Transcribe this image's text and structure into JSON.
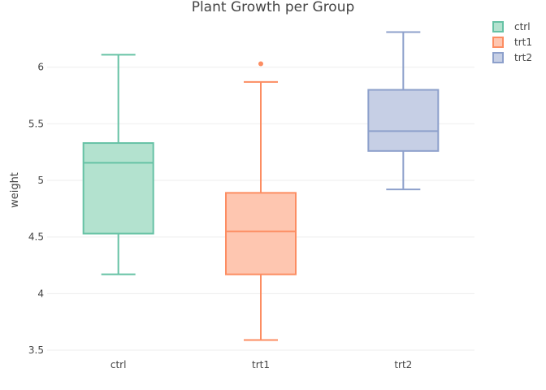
{
  "chart_data": {
    "type": "box",
    "title": "Plant Growth per Group",
    "xlabel": "",
    "ylabel": "weight",
    "ylim": [
      3.45,
      6.45
    ],
    "yticks": [
      3.5,
      4,
      4.5,
      5,
      5.5,
      6
    ],
    "ytick_labels": [
      "3.5",
      "4",
      "4.5",
      "5",
      "5.5",
      "6"
    ],
    "grid": true,
    "legend": {
      "position": "top-right",
      "items": [
        "ctrl",
        "trt1",
        "trt2"
      ]
    },
    "categories": [
      "ctrl",
      "trt1",
      "trt2"
    ],
    "boxes": [
      {
        "name": "ctrl",
        "color": "#66c2a5",
        "fill": "#b3e2cf",
        "min": 4.17,
        "q1": 4.53,
        "median": 5.155,
        "q3": 5.33,
        "max": 6.11,
        "outliers": []
      },
      {
        "name": "trt1",
        "color": "#fc8d62",
        "fill": "#fec6b0",
        "min": 3.59,
        "q1": 4.17,
        "median": 4.55,
        "q3": 4.89,
        "max": 5.87,
        "outliers": [
          6.03
        ]
      },
      {
        "name": "trt2",
        "color": "#8da0cb",
        "fill": "#c6cfe5",
        "min": 4.92,
        "q1": 5.26,
        "median": 5.435,
        "q3": 5.8,
        "max": 6.31,
        "outliers": []
      }
    ]
  }
}
